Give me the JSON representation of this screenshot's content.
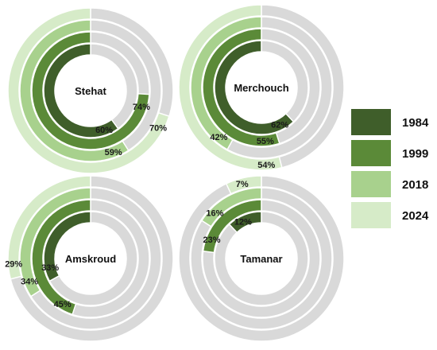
{
  "chart_data": {
    "type": "radial-bar",
    "series": [
      {
        "name": "1984",
        "color": "#3f5e2a"
      },
      {
        "name": "1999",
        "color": "#5b8a38"
      },
      {
        "name": "2018",
        "color": "#a8d18d"
      },
      {
        "name": "2024",
        "color": "#d6ebc8"
      }
    ],
    "track_color": "#d9d9d9",
    "value_unit": "%",
    "panels": [
      {
        "name": "Stehat",
        "values": {
          "1984": 60,
          "1999": 74,
          "2018": 59,
          "2024": 70
        }
      },
      {
        "name": "Merchouch",
        "values": {
          "1984": 62,
          "1999": 55,
          "2018": 42,
          "2024": 54
        }
      },
      {
        "name": "Amskroud",
        "values": {
          "1984": 33,
          "1999": 45,
          "2018": 34,
          "2024": 29
        }
      },
      {
        "name": "Tamanar",
        "values": {
          "1984": 12,
          "1999": 23,
          "2018": 16,
          "2024": 7
        }
      }
    ],
    "legend": {
      "entries": [
        "1984",
        "1999",
        "2018",
        "2024"
      ],
      "placement": "right"
    }
  }
}
